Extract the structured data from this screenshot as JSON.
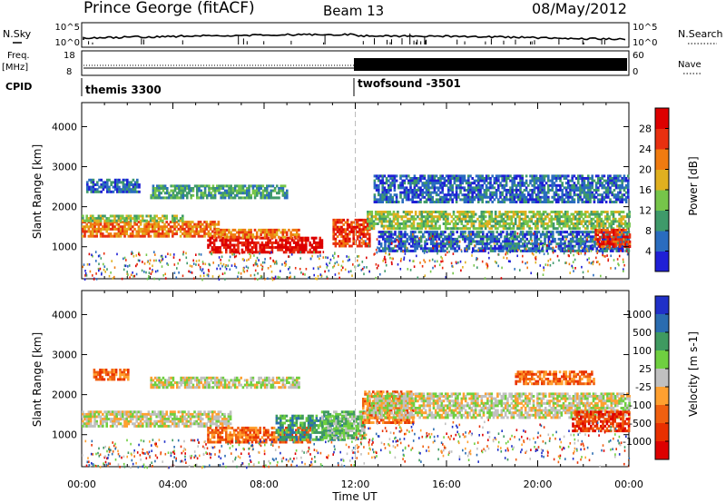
{
  "header": {
    "station": "Prince George (fitACF)",
    "beam": "Beam 13",
    "date": "08/May/2012"
  },
  "top_panels": {
    "nsky_label": "N.Sky",
    "nsearch_label": "N.Search",
    "nsky_ticks": [
      "10^5",
      "10^0"
    ],
    "nsearch_ticks": [
      "10^5",
      "10^0"
    ],
    "freq_label": "Freq.",
    "freq_unit": "[MHz]",
    "freq_ticks": [
      "18",
      "8"
    ],
    "nave_label": "Nave",
    "nave_ticks": [
      "60",
      "0"
    ],
    "cpid_label": "CPID",
    "cpid_segments": [
      {
        "name": "themis 3300",
        "start": 0,
        "end": 12
      },
      {
        "name": "twofsound -3501",
        "start": 12,
        "end": 24
      }
    ]
  },
  "chart_data": [
    {
      "type": "heatmap",
      "name": "power",
      "ylabel": "Slant Range [km]",
      "xlabel": "Time UT",
      "xlim": [
        0,
        24
      ],
      "ylim": [
        200,
        4600
      ],
      "yticks": [
        "1000",
        "2000",
        "3000",
        "4000"
      ],
      "xticks": [
        "00:00",
        "04:00",
        "08:00",
        "12:00",
        "16:00",
        "20:00",
        "00:00"
      ],
      "colorbar": {
        "label": "Power [dB]",
        "ticks": [
          "4",
          "8",
          "12",
          "16",
          "20",
          "24",
          "28"
        ],
        "colors": [
          "#1f1fd6",
          "#2a6cbf",
          "#3f9a6a",
          "#76c54a",
          "#e0b020",
          "#f07b10",
          "#e83010",
          "#dd0000"
        ]
      },
      "bands": [
        {
          "t0": 0.0,
          "t1": 6.0,
          "r0": 1250,
          "r1": 1650,
          "level": 5
        },
        {
          "t0": 0.0,
          "t1": 4.5,
          "r0": 1650,
          "r1": 1800,
          "level": 3
        },
        {
          "t0": 5.5,
          "t1": 10.5,
          "r0": 850,
          "r1": 1250,
          "level": 7
        },
        {
          "t0": 5.8,
          "t1": 9.5,
          "r0": 1250,
          "r1": 1450,
          "level": 5
        },
        {
          "t0": 11.0,
          "t1": 12.6,
          "r0": 1050,
          "r1": 1700,
          "level": 6
        },
        {
          "t0": 12.5,
          "t1": 24.0,
          "r0": 1450,
          "r1": 1900,
          "level": 3
        },
        {
          "t0": 0.2,
          "t1": 2.5,
          "r0": 2400,
          "r1": 2700,
          "level": 1
        },
        {
          "t0": 3.0,
          "t1": 9.0,
          "r0": 2250,
          "r1": 2550,
          "level": 2
        },
        {
          "t0": 12.8,
          "t1": 24.0,
          "r0": 2100,
          "r1": 2800,
          "level": 1
        },
        {
          "t0": 13.0,
          "t1": 24.0,
          "r0": 900,
          "r1": 1400,
          "level": 1
        },
        {
          "t0": 22.5,
          "t1": 24.0,
          "r0": 1000,
          "r1": 1450,
          "level": 6
        }
      ]
    },
    {
      "type": "heatmap",
      "name": "velocity",
      "ylabel": "Slant Range [km]",
      "xlabel": "Time UT",
      "xlim": [
        0,
        24
      ],
      "ylim": [
        200,
        4600
      ],
      "yticks": [
        "1000",
        "2000",
        "3000",
        "4000"
      ],
      "xticks": [
        "00:00",
        "04:00",
        "08:00",
        "12:00",
        "16:00",
        "20:00",
        "00:00"
      ],
      "colorbar": {
        "label": "Velocity [m s-1]",
        "ticks": [
          "1000",
          "500",
          "100",
          "25",
          "-25",
          "-100",
          "-500",
          "-1000"
        ],
        "colors": [
          "#2030c8",
          "#2a6cb0",
          "#3f9a60",
          "#6fcf40",
          "#c0c0c0",
          "#ffa030",
          "#f06010",
          "#e83000",
          "#dd0000"
        ]
      },
      "bands": [
        {
          "t0": 0.0,
          "t1": 6.5,
          "r0": 1200,
          "r1": 1600,
          "level": 4
        },
        {
          "t0": 5.5,
          "t1": 10.0,
          "r0": 800,
          "r1": 1200,
          "level": 6
        },
        {
          "t0": 8.5,
          "t1": 11.5,
          "r0": 900,
          "r1": 1500,
          "level": 2
        },
        {
          "t0": 10.5,
          "t1": 12.4,
          "r0": 900,
          "r1": 1600,
          "level": 3
        },
        {
          "t0": 12.3,
          "t1": 14.5,
          "r0": 1300,
          "r1": 2100,
          "level": 6
        },
        {
          "t0": 12.5,
          "t1": 24.0,
          "r0": 1450,
          "r1": 2050,
          "level": 4
        },
        {
          "t0": 0.5,
          "t1": 2.0,
          "r0": 2400,
          "r1": 2650,
          "level": 6
        },
        {
          "t0": 3.0,
          "t1": 9.5,
          "r0": 2200,
          "r1": 2450,
          "level": 4
        },
        {
          "t0": 19.0,
          "t1": 22.5,
          "r0": 2300,
          "r1": 2600,
          "level": 6
        },
        {
          "t0": 21.5,
          "t1": 24.0,
          "r0": 1100,
          "r1": 1600,
          "level": 7
        }
      ]
    }
  ]
}
